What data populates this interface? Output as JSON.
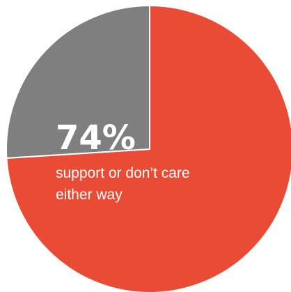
{
  "chart_data": {
    "type": "pie",
    "slices": [
      {
        "value": 74,
        "color": "#e94b35"
      },
      {
        "value": 26,
        "color": "#7f7f7f"
      }
    ],
    "start_angle_deg": 0,
    "direction": "clockwise-from-top",
    "annotation": {
      "value_label": "74%",
      "text_lines": [
        "support or don’t care",
        "either way"
      ]
    },
    "edge_color": "#ffffff"
  }
}
